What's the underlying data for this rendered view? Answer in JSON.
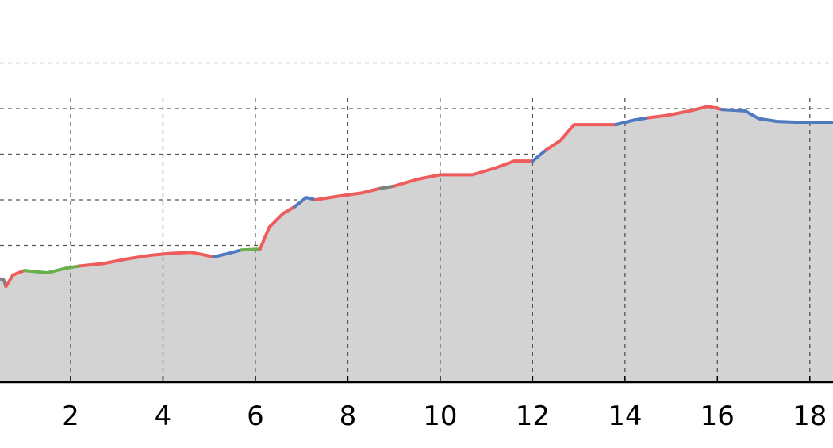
{
  "chart_data": {
    "type": "area",
    "title": "",
    "xlabel": "",
    "ylabel": "",
    "xlim": [
      0.0,
      18.5
    ],
    "ylim": [
      0,
      7
    ],
    "x_ticks": [
      2,
      4,
      6,
      8,
      10,
      12,
      14,
      16,
      18
    ],
    "x_tick_labels": [
      "2",
      "4",
      "6",
      "8",
      "10",
      "12",
      "14",
      "16",
      "18"
    ],
    "y_gridlines": [
      1,
      2,
      3,
      4,
      5,
      6,
      7
    ],
    "grid": "dashed",
    "fill_color": "#d3d3d3",
    "segment_colors": {
      "gray": "#808080",
      "red": "#ee5c5c",
      "green": "#6ab04c",
      "blue": "#4f7ac0"
    },
    "series": [
      {
        "segments": [
          {
            "color": "gray",
            "points": [
              [
                0.0,
                2.15
              ],
              [
                0.3,
                2.3
              ],
              [
                0.55,
                2.25
              ],
              [
                0.6,
                2.1
              ]
            ]
          },
          {
            "color": "red",
            "points": [
              [
                0.6,
                2.1
              ],
              [
                0.75,
                2.35
              ],
              [
                1.0,
                2.45
              ]
            ]
          },
          {
            "color": "green",
            "points": [
              [
                1.0,
                2.45
              ],
              [
                1.5,
                2.4
              ],
              [
                1.9,
                2.5
              ],
              [
                2.2,
                2.55
              ]
            ]
          },
          {
            "color": "red",
            "points": [
              [
                2.2,
                2.55
              ],
              [
                2.7,
                2.6
              ],
              [
                3.2,
                2.7
              ],
              [
                3.7,
                2.78
              ],
              [
                4.1,
                2.82
              ],
              [
                4.6,
                2.85
              ],
              [
                5.1,
                2.75
              ]
            ]
          },
          {
            "color": "blue",
            "points": [
              [
                5.1,
                2.75
              ],
              [
                5.4,
                2.82
              ],
              [
                5.7,
                2.9
              ]
            ]
          },
          {
            "color": "green",
            "points": [
              [
                5.7,
                2.9
              ],
              [
                6.1,
                2.92
              ]
            ]
          },
          {
            "color": "red",
            "points": [
              [
                6.1,
                2.92
              ],
              [
                6.3,
                3.4
              ],
              [
                6.6,
                3.7
              ],
              [
                6.85,
                3.85
              ]
            ]
          },
          {
            "color": "blue",
            "points": [
              [
                6.85,
                3.85
              ],
              [
                7.1,
                4.05
              ],
              [
                7.3,
                4.0
              ]
            ]
          },
          {
            "color": "red",
            "points": [
              [
                7.3,
                4.0
              ],
              [
                7.8,
                4.08
              ],
              [
                8.3,
                4.15
              ],
              [
                8.7,
                4.25
              ]
            ]
          },
          {
            "color": "gray",
            "points": [
              [
                8.7,
                4.25
              ],
              [
                9.0,
                4.3
              ]
            ]
          },
          {
            "color": "red",
            "points": [
              [
                9.0,
                4.3
              ],
              [
                9.5,
                4.45
              ],
              [
                10.0,
                4.55
              ],
              [
                10.7,
                4.55
              ],
              [
                11.2,
                4.7
              ],
              [
                11.6,
                4.85
              ],
              [
                12.0,
                4.85
              ]
            ]
          },
          {
            "color": "blue",
            "points": [
              [
                12.0,
                4.85
              ],
              [
                12.3,
                5.1
              ]
            ]
          },
          {
            "color": "red",
            "points": [
              [
                12.3,
                5.1
              ],
              [
                12.6,
                5.3
              ],
              [
                12.9,
                5.65
              ],
              [
                13.3,
                5.65
              ],
              [
                13.8,
                5.65
              ]
            ]
          },
          {
            "color": "blue",
            "points": [
              [
                13.8,
                5.65
              ],
              [
                14.2,
                5.75
              ],
              [
                14.5,
                5.8
              ]
            ]
          },
          {
            "color": "red",
            "points": [
              [
                14.5,
                5.8
              ],
              [
                14.9,
                5.85
              ],
              [
                15.4,
                5.95
              ],
              [
                15.8,
                6.05
              ],
              [
                16.1,
                5.98
              ]
            ]
          },
          {
            "color": "blue",
            "points": [
              [
                16.1,
                5.98
              ],
              [
                16.6,
                5.95
              ],
              [
                16.9,
                5.78
              ],
              [
                17.3,
                5.72
              ],
              [
                17.8,
                5.7
              ],
              [
                18.5,
                5.7
              ]
            ]
          }
        ]
      }
    ]
  }
}
